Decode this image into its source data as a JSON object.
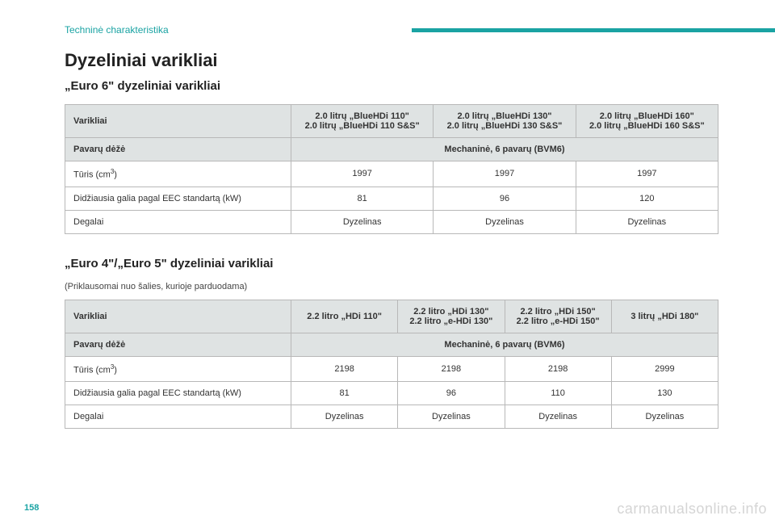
{
  "section_label": "Techninė charakteristika",
  "title": "Dyzeliniai varikliai",
  "page_number": "158",
  "watermark": "carmanualsonline.info",
  "euro6": {
    "subtitle": "„Euro 6\" dyzeliniai varikliai",
    "headers": {
      "col1": "Varikliai",
      "e1a": "2.0 litrų „BlueHDi 110\"",
      "e1b": "2.0 litrų „BlueHDi 110 S&S\"",
      "e2a": "2.0 litrų „BlueHDi 130\"",
      "e2b": "2.0 litrų „BlueHDi 130 S&S\"",
      "e3a": "2.0 litrų „BlueHDi 160\"",
      "e3b": "2.0 litrų „BlueHDi 160 S&S\""
    },
    "gearbox": {
      "label": "Pavarų dėžė",
      "value": "Mechaninė, 6 pavarų (BVM6)"
    },
    "rows": {
      "vol_label": "Tūris (cm",
      "vol_sup": "3",
      "vol_post": ")",
      "vol_v1": "1997",
      "vol_v2": "1997",
      "vol_v3": "1997",
      "pow_label": "Didžiausia galia pagal EEC standartą (kW)",
      "pow_v1": "81",
      "pow_v2": "96",
      "pow_v3": "120",
      "fuel_label": "Degalai",
      "fuel_v1": "Dyzelinas",
      "fuel_v2": "Dyzelinas",
      "fuel_v3": "Dyzelinas"
    }
  },
  "euro45": {
    "subtitle": "„Euro 4\"/„Euro 5\" dyzeliniai varikliai",
    "hint": "(Priklausomai nuo šalies, kurioje parduodama)",
    "headers": {
      "col1": "Varikliai",
      "e1": "2.2 litro „HDi 110\"",
      "e2a": "2.2 litro „HDi 130\"",
      "e2b": "2.2 litro „e-HDi 130\"",
      "e3a": "2.2 litro „HDi 150\"",
      "e3b": "2.2 litro „e-HDi 150\"",
      "e4": "3 litrų „HDi 180\""
    },
    "gearbox": {
      "label": "Pavarų dėžė",
      "value": "Mechaninė, 6 pavarų (BVM6)"
    },
    "rows": {
      "vol_label": "Tūris (cm",
      "vol_sup": "3",
      "vol_post": ")",
      "vol_v1": "2198",
      "vol_v2": "2198",
      "vol_v3": "2198",
      "vol_v4": "2999",
      "pow_label": "Didžiausia galia pagal EEC standartą (kW)",
      "pow_v1": "81",
      "pow_v2": "96",
      "pow_v3": "110",
      "pow_v4": "130",
      "fuel_label": "Degalai",
      "fuel_v1": "Dyzelinas",
      "fuel_v2": "Dyzelinas",
      "fuel_v3": "Dyzelinas",
      "fuel_v4": "Dyzelinas"
    }
  }
}
